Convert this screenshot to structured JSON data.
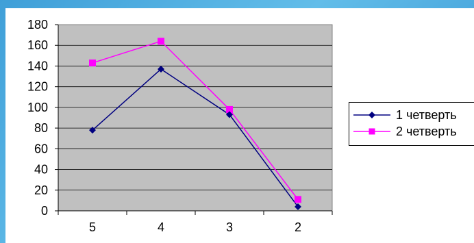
{
  "colors": {
    "background_gradient_start": "#3f9fd8",
    "background_gradient_end": "#2f8fd0",
    "plot_area": "#c0c0c0",
    "series_1": "#000080",
    "series_2": "#ff00ff"
  },
  "chart_data": {
    "type": "line",
    "title": "",
    "xlabel": "",
    "ylabel": "",
    "categories": [
      "5",
      "4",
      "3",
      "2"
    ],
    "ylim": [
      0,
      180
    ],
    "yticks": [
      0,
      20,
      40,
      60,
      80,
      100,
      120,
      140,
      160,
      180
    ],
    "grid": true,
    "legend_position": "right",
    "series": [
      {
        "name": "1 четверть",
        "color": "#000080",
        "marker": "diamond",
        "values": [
          78,
          137,
          93,
          4
        ]
      },
      {
        "name": "2 четверть",
        "color": "#ff00ff",
        "marker": "square",
        "values": [
          143,
          164,
          98,
          11
        ]
      }
    ]
  }
}
